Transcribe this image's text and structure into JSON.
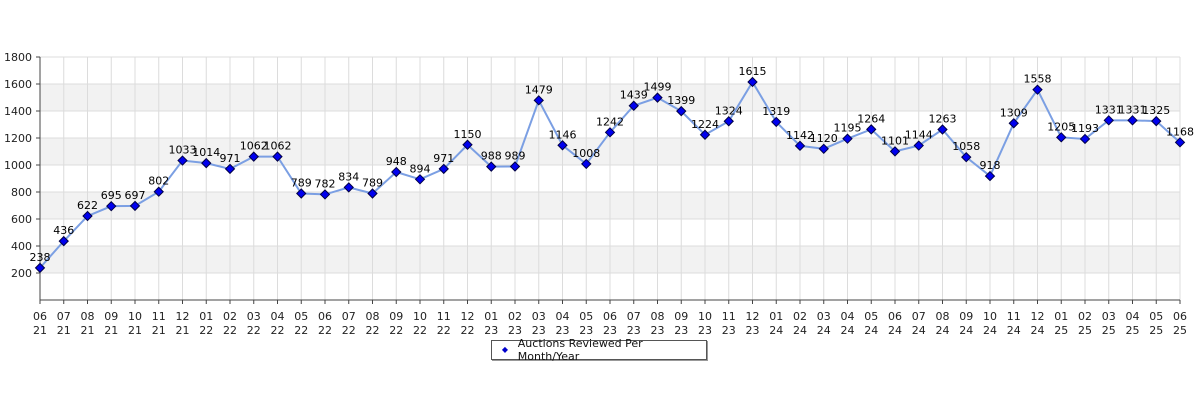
{
  "chart_data": {
    "type": "line",
    "title": "",
    "xlabel": "",
    "ylabel": "",
    "ylim": [
      0,
      1800
    ],
    "yticks": [
      200,
      400,
      600,
      800,
      1000,
      1200,
      1400,
      1600,
      1800
    ],
    "grid": true,
    "legend_position": "bottom-center",
    "categories": [
      [
        "06",
        "21"
      ],
      [
        "07",
        "21"
      ],
      [
        "08",
        "21"
      ],
      [
        "09",
        "21"
      ],
      [
        "10",
        "21"
      ],
      [
        "11",
        "21"
      ],
      [
        "12",
        "21"
      ],
      [
        "01",
        "22"
      ],
      [
        "02",
        "22"
      ],
      [
        "03",
        "22"
      ],
      [
        "04",
        "22"
      ],
      [
        "05",
        "22"
      ],
      [
        "06",
        "22"
      ],
      [
        "07",
        "22"
      ],
      [
        "08",
        "22"
      ],
      [
        "09",
        "22"
      ],
      [
        "10",
        "22"
      ],
      [
        "11",
        "22"
      ],
      [
        "12",
        "22"
      ],
      [
        "01",
        "23"
      ],
      [
        "02",
        "23"
      ],
      [
        "03",
        "23"
      ],
      [
        "04",
        "23"
      ],
      [
        "05",
        "23"
      ],
      [
        "06",
        "23"
      ],
      [
        "07",
        "23"
      ],
      [
        "08",
        "23"
      ],
      [
        "09",
        "23"
      ],
      [
        "10",
        "23"
      ],
      [
        "11",
        "23"
      ],
      [
        "12",
        "23"
      ],
      [
        "01",
        "24"
      ],
      [
        "02",
        "24"
      ],
      [
        "03",
        "24"
      ],
      [
        "04",
        "24"
      ],
      [
        "05",
        "24"
      ],
      [
        "06",
        "24"
      ],
      [
        "07",
        "24"
      ],
      [
        "08",
        "24"
      ],
      [
        "09",
        "24"
      ],
      [
        "10",
        "24"
      ],
      [
        "11",
        "24"
      ],
      [
        "12",
        "24"
      ],
      [
        "01",
        "25"
      ],
      [
        "02",
        "25"
      ],
      [
        "03",
        "25"
      ],
      [
        "04",
        "25"
      ],
      [
        "05",
        "25"
      ],
      [
        "06",
        "25"
      ]
    ],
    "series": [
      {
        "name": "Auctions Reviewed Per Month/Year",
        "values": [
          238,
          436,
          622,
          695,
          697,
          802,
          1033,
          1014,
          971,
          1062,
          1062,
          789,
          782,
          834,
          789,
          948,
          894,
          971,
          1150,
          988,
          989,
          1479,
          1146,
          1008,
          1242,
          1439,
          1499,
          1399,
          1224,
          1324,
          1615,
          1319,
          1142,
          1120,
          1195,
          1264,
          1101,
          1144,
          1263,
          1058,
          918,
          1309,
          1558,
          1205,
          1193,
          1331,
          1331,
          1325,
          1168
        ]
      }
    ],
    "colors": {
      "line": "#7b9fe3",
      "marker_fill": "#0000ee",
      "marker_stroke": "#000044",
      "band": "#f2f2f2",
      "grid": "#dcdcdc"
    }
  }
}
